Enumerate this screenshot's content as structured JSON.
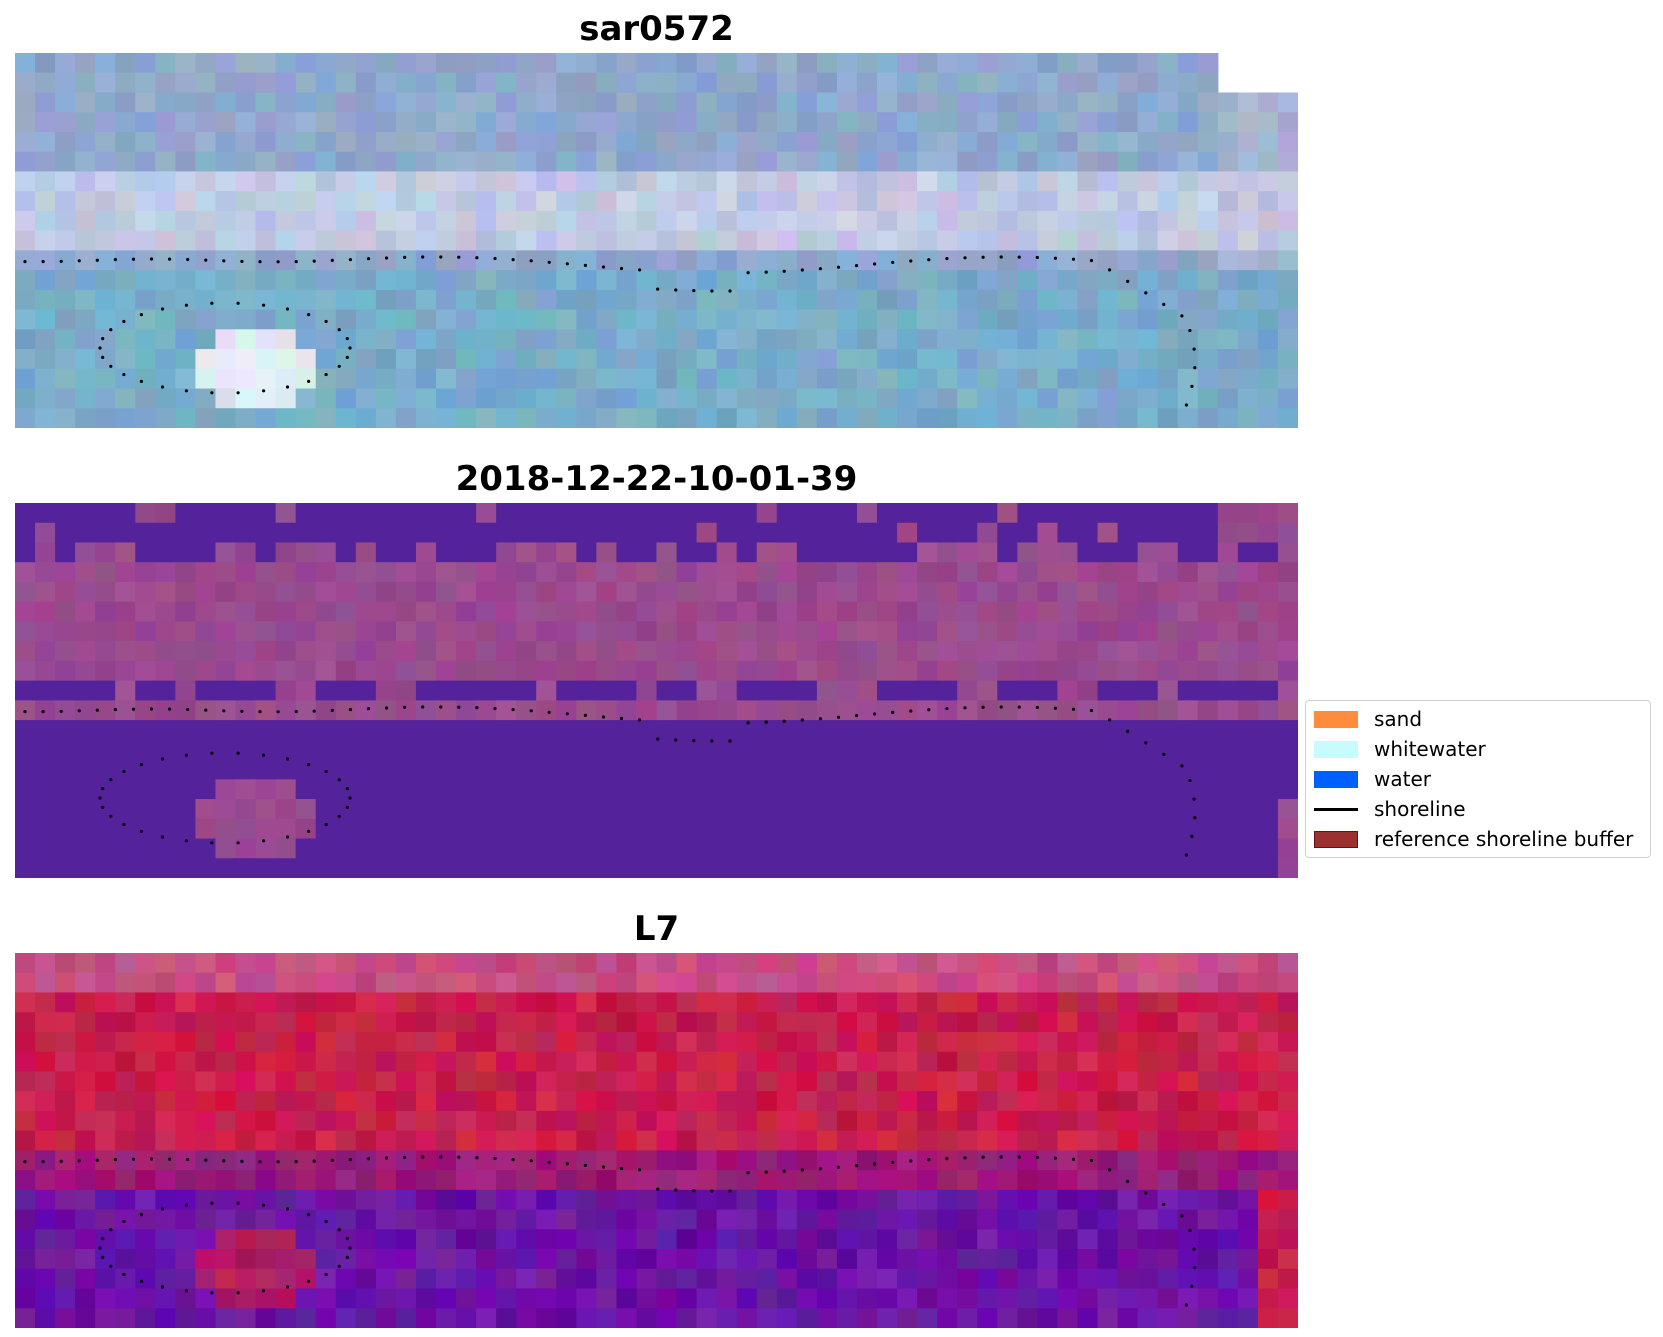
{
  "figure": {
    "panels": [
      {
        "title": "sar0572",
        "kind": "rgb"
      },
      {
        "title": "2018-12-22-10-01-39",
        "kind": "classification"
      },
      {
        "title": "L7",
        "kind": "index"
      }
    ],
    "legend": {
      "items": [
        {
          "label": "sand",
          "type": "patch",
          "color": "#ff8c3c"
        },
        {
          "label": "whitewater",
          "type": "patch",
          "color": "#c8fcfc"
        },
        {
          "label": "water",
          "type": "patch",
          "color": "#0060ff"
        },
        {
          "label": "shoreline",
          "type": "line",
          "color": "#000000"
        },
        {
          "label": "reference shoreline buffer",
          "type": "patch",
          "color": "#9a3030",
          "edge": "#6a1010"
        }
      ]
    },
    "colors": {
      "rgb_base": "#8fa8cc",
      "rgb_water": "#79acc9",
      "rgb_whitewater": "#dcdcee",
      "class_water": "#54229a",
      "class_land": "#9a4a8e",
      "index_land": "#c81e4c",
      "index_water": "#6a14a4",
      "shoreline_dots": "#000000"
    }
  }
}
